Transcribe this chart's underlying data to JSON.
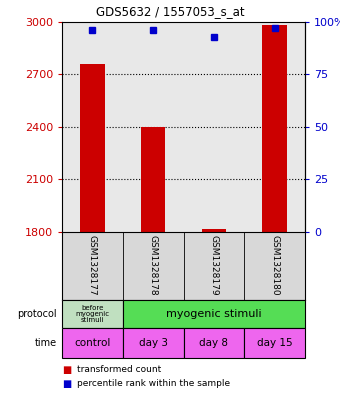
{
  "title": "GDS5632 / 1557053_s_at",
  "samples": [
    "GSM1328177",
    "GSM1328178",
    "GSM1328179",
    "GSM1328180"
  ],
  "transformed_counts": [
    2760,
    2400,
    1815,
    2980
  ],
  "percentile_ranks": [
    96,
    96,
    93,
    97
  ],
  "y_min": 1800,
  "y_max": 3000,
  "y_ticks": [
    1800,
    2100,
    2400,
    2700,
    3000
  ],
  "y_right_ticks": [
    0,
    25,
    50,
    75,
    100
  ],
  "y_right_labels": [
    "0",
    "25",
    "50",
    "75",
    "100%"
  ],
  "bar_color": "#cc0000",
  "dot_color": "#0000cc",
  "left_tick_color": "#cc0000",
  "right_tick_color": "#0000cc",
  "protocol_label_0": "before\nmyogenic\nstimuli",
  "protocol_label_1": "myogenic stimuli",
  "protocol_color_0": "#c0e0c0",
  "protocol_color_1": "#55dd55",
  "time_labels": [
    "control",
    "day 3",
    "day 8",
    "day 15"
  ],
  "time_color": "#ee66ee",
  "legend_red_label": "transformed count",
  "legend_blue_label": "percentile rank within the sample",
  "grid_color": "#000000",
  "background_color": "#ffffff",
  "plot_bg_color": "#e8e8e8",
  "sample_bg_color": "#d8d8d8",
  "bar_width": 0.4
}
